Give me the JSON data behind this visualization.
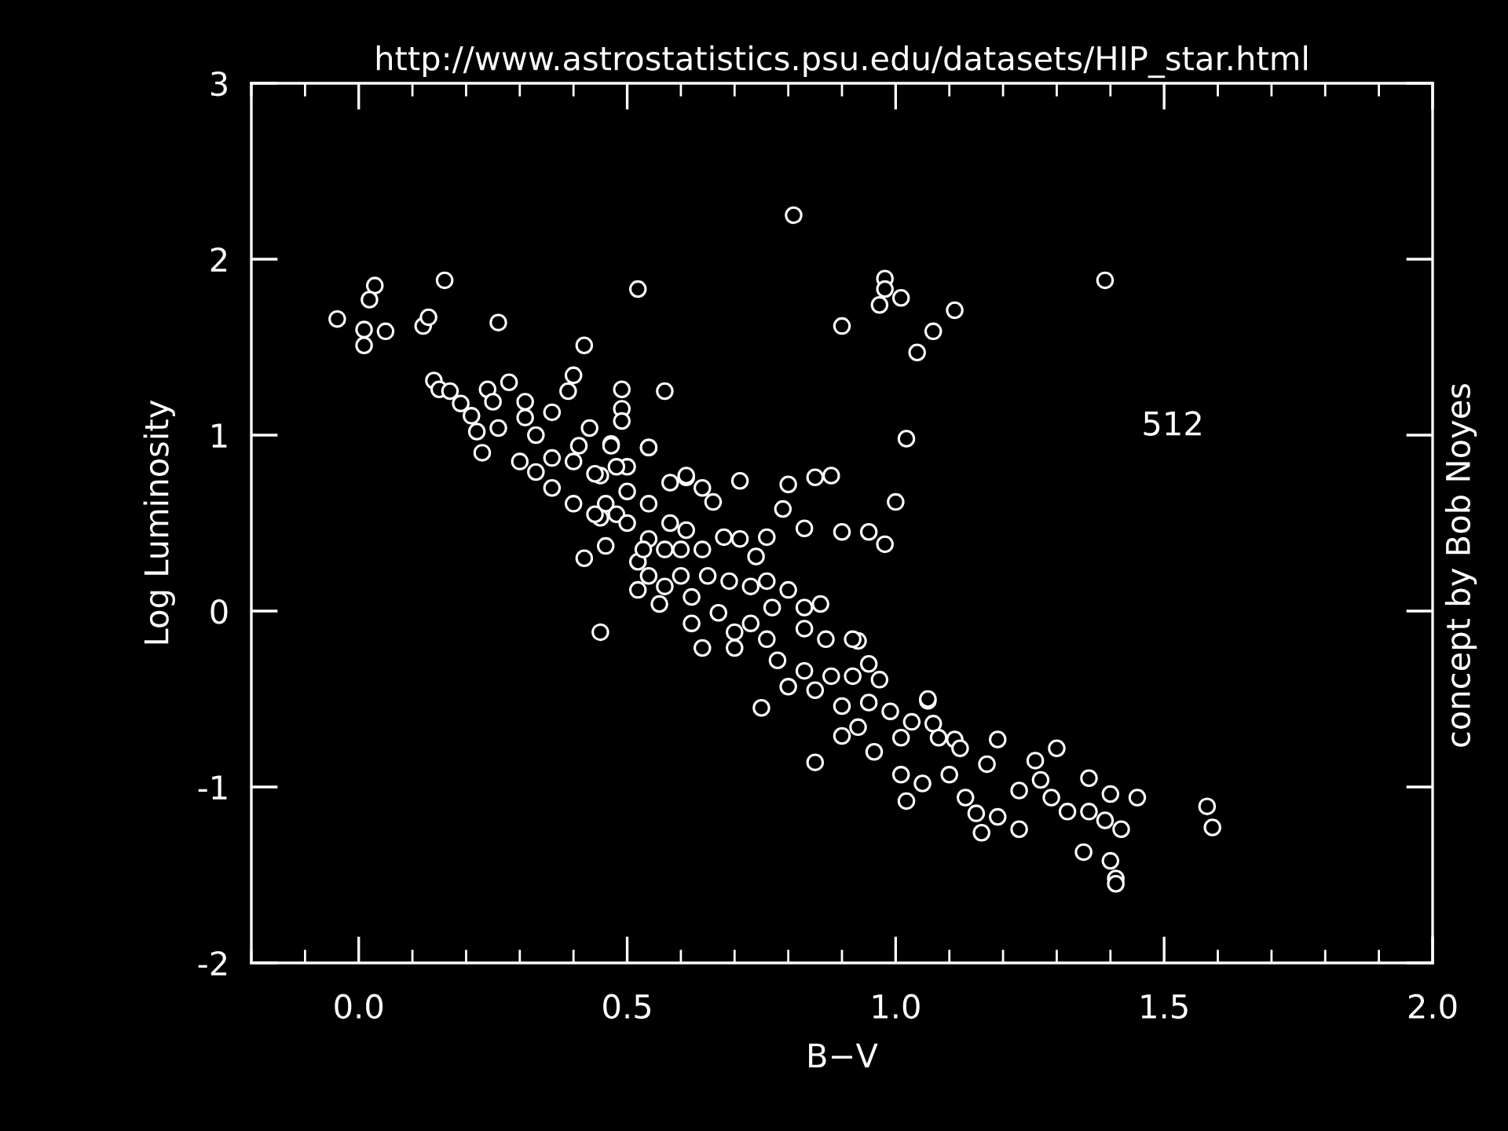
{
  "chart_data": {
    "type": "scatter",
    "title": "http://www.astrostatistics.psu.edu/datasets/HIP_star.html",
    "xlabel": "B−V",
    "ylabel": "Log Luminosity",
    "annotations": [
      "512",
      "concept by Bob Noyes"
    ],
    "xlim": [
      -0.2,
      2.0
    ],
    "xticks": [
      {
        "value": 0,
        "label": "0.0"
      },
      0.5,
      {
        "value": 1,
        "label": "1.0"
      },
      1.5,
      {
        "value": 2,
        "label": "2.0"
      }
    ],
    "ylim": [
      -2,
      3
    ],
    "yticks": [
      -2,
      -1,
      0,
      1,
      2,
      3
    ],
    "grid": false,
    "marker": "circle",
    "color": "#ffffff",
    "series": [
      {
        "color": "#ffffff",
        "x": [
          -0.04,
          0.03,
          0.02,
          0.01,
          0.05,
          0.01,
          0.16,
          0.12,
          0.13,
          0.26,
          0.52,
          0.81,
          0.42,
          0.9,
          0.14,
          0.15,
          0.17,
          0.19,
          0.21,
          0.22,
          0.24,
          0.25,
          0.28,
          0.31,
          0.23,
          0.26,
          0.31,
          0.33,
          0.36,
          0.4,
          0.39,
          0.43,
          0.41,
          0.47,
          0.49,
          0.49,
          0.49,
          0.57,
          0.54,
          0.3,
          0.33,
          0.36,
          0.36,
          0.42,
          0.71,
          0.8,
          0.85,
          0.88,
          0.79,
          0.83,
          0.9,
          0.64,
          0.66,
          0.61,
          0.71,
          0.76,
          0.74,
          0.98,
          0.98,
          0.97,
          1.01,
          1.11,
          1.07,
          1.04,
          1.39,
          1.02,
          1.0,
          0.95,
          0.98,
          0.93,
          0.95,
          1.06,
          0.96,
          1.02,
          1.05,
          1.01,
          1.07,
          1.11,
          1.12,
          1.19,
          1.3,
          1.1,
          1.13,
          1.15,
          1.16,
          1.19,
          1.23,
          1.17,
          1.23,
          1.26,
          1.27,
          1.29,
          1.32,
          1.36,
          1.36,
          1.39,
          1.42,
          1.4,
          1.45,
          1.35,
          1.4,
          1.41,
          1.41,
          1.58,
          1.59,
          0.45,
          0.64,
          0.75,
          0.85,
          0.9,
          0.47,
          0.54,
          0.5,
          0.46,
          0.48,
          0.54,
          0.58,
          0.61,
          0.54,
          0.52,
          0.57,
          0.61,
          0.64,
          0.68,
          0.52,
          0.57,
          0.56,
          0.62,
          0.65,
          0.69,
          0.73,
          0.76,
          0.8,
          0.62,
          0.67,
          0.7,
          0.73,
          0.76,
          0.7,
          0.77,
          0.83,
          0.86,
          0.83,
          0.87,
          0.92,
          0.78,
          0.83,
          0.88,
          0.92,
          0.97,
          0.8,
          0.85,
          0.9,
          0.95,
          0.99,
          1.03,
          1.06,
          1.08,
          0.93,
          1.01,
          0.45,
          0.45,
          0.5,
          0.4,
          0.44,
          0.48,
          0.4,
          0.44,
          0.5,
          0.53,
          0.46,
          0.58,
          0.6,
          0.54,
          0.6
        ],
        "values": [
          1.66,
          1.85,
          1.77,
          1.6,
          1.59,
          1.51,
          1.88,
          1.62,
          1.67,
          1.64,
          1.83,
          2.25,
          1.51,
          1.62,
          1.31,
          1.26,
          1.25,
          1.18,
          1.11,
          1.02,
          1.26,
          1.19,
          1.3,
          1.19,
          0.9,
          1.04,
          1.1,
          1.0,
          1.13,
          1.34,
          1.25,
          1.04,
          0.94,
          0.95,
          1.26,
          1.15,
          1.08,
          1.25,
          0.93,
          0.85,
          0.79,
          0.87,
          0.7,
          0.3,
          0.74,
          0.72,
          0.76,
          0.77,
          0.58,
          0.47,
          0.45,
          0.7,
          0.62,
          0.76,
          0.41,
          0.42,
          0.31,
          1.89,
          1.83,
          1.74,
          1.78,
          1.71,
          1.59,
          1.47,
          1.88,
          0.98,
          0.62,
          0.45,
          0.38,
          -0.17,
          -0.3,
          -0.51,
          -0.8,
          -1.08,
          -0.98,
          -0.93,
          -0.64,
          -0.73,
          -0.78,
          -0.73,
          -0.78,
          -0.93,
          -1.06,
          -1.15,
          -1.26,
          -1.17,
          -1.24,
          -0.87,
          -1.02,
          -0.85,
          -0.96,
          -1.06,
          -1.14,
          -0.95,
          -1.14,
          -1.19,
          -1.24,
          -1.04,
          -1.06,
          -1.37,
          -1.42,
          -1.52,
          -1.55,
          -1.11,
          -1.23,
          -0.12,
          -0.21,
          -0.55,
          -0.86,
          -0.71,
          0.94,
          0.93,
          0.82,
          0.61,
          0.55,
          0.61,
          0.73,
          0.77,
          0.41,
          0.28,
          0.35,
          0.46,
          0.35,
          0.42,
          0.12,
          0.14,
          0.04,
          0.08,
          0.2,
          0.17,
          0.14,
          0.17,
          0.12,
          -0.07,
          -0.01,
          -0.12,
          -0.07,
          -0.16,
          -0.21,
          0.02,
          0.02,
          0.04,
          -0.1,
          -0.16,
          -0.16,
          -0.28,
          -0.34,
          -0.37,
          -0.37,
          -0.39,
          -0.43,
          -0.45,
          -0.54,
          -0.52,
          -0.57,
          -0.63,
          -0.5,
          -0.72,
          -0.66,
          -0.72,
          0.77,
          0.53,
          0.68,
          0.85,
          0.78,
          0.82,
          0.61,
          0.55,
          0.5,
          0.35,
          0.37,
          0.5,
          0.2,
          0.2,
          0.35
        ]
      }
    ]
  }
}
